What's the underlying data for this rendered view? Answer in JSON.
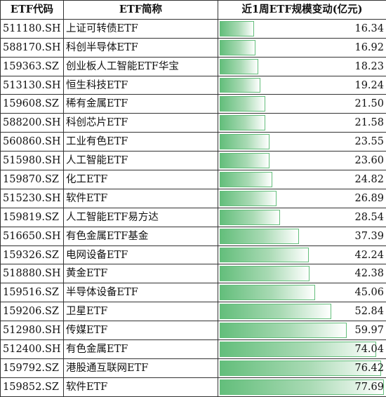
{
  "header": {
    "code": "ETF代码",
    "name": "ETF简称",
    "change": "近1周ETF规模变动(亿元)"
  },
  "rows": [
    {
      "code": "511180.SH",
      "name": "上证可转债ETF",
      "value": "16.34"
    },
    {
      "code": "588170.SH",
      "name": "科创半导体ETF",
      "value": "16.92"
    },
    {
      "code": "159363.SZ",
      "name": "创业板人工智能ETF华宝",
      "value": "18.23"
    },
    {
      "code": "513130.SH",
      "name": "恒生科技ETF",
      "value": "19.24"
    },
    {
      "code": "159608.SZ",
      "name": "稀有金属ETF",
      "value": "21.50"
    },
    {
      "code": "588200.SH",
      "name": "科创芯片ETF",
      "value": "21.58"
    },
    {
      "code": "560860.SH",
      "name": "工业有色ETF",
      "value": "23.55"
    },
    {
      "code": "515980.SH",
      "name": "人工智能ETF",
      "value": "23.60"
    },
    {
      "code": "159870.SZ",
      "name": "化工ETF",
      "value": "24.82"
    },
    {
      "code": "515230.SH",
      "name": "软件ETF",
      "value": "26.89"
    },
    {
      "code": "159819.SZ",
      "name": "人工智能ETF易方达",
      "value": "28.54"
    },
    {
      "code": "516650.SH",
      "name": "有色金属ETF基金",
      "value": "37.39"
    },
    {
      "code": "159326.SZ",
      "name": "电网设备ETF",
      "value": "42.24"
    },
    {
      "code": "518880.SH",
      "name": "黄金ETF",
      "value": "42.38"
    },
    {
      "code": "159516.SZ",
      "name": "半导体设备ETF",
      "value": "45.06"
    },
    {
      "code": "159206.SZ",
      "name": "卫星ETF",
      "value": "52.84"
    },
    {
      "code": "512980.SH",
      "name": "传媒ETF",
      "value": "59.97"
    },
    {
      "code": "512400.SH",
      "name": "有色金属ETF",
      "value": "74.04"
    },
    {
      "code": "159792.SZ",
      "name": "港股通互联网ETF",
      "value": "76.42"
    },
    {
      "code": "159852.SZ",
      "name": "软件ETF",
      "value": "77.69"
    }
  ],
  "colors": {
    "bar": "#63be7b",
    "border": "#333333"
  }
}
